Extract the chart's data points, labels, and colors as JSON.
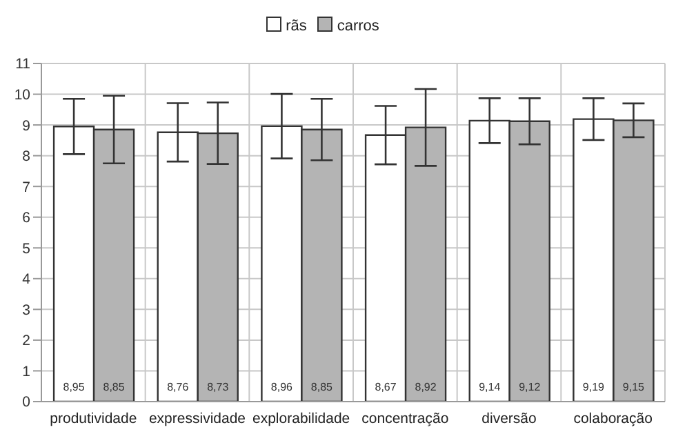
{
  "chart_data": {
    "type": "bar",
    "categories": [
      "produtividade",
      "expressividade",
      "explorabilidade",
      "concentração",
      "diversão",
      "colaboração"
    ],
    "series": [
      {
        "name": "rãs",
        "color": "#ffffff",
        "values": [
          8.95,
          8.76,
          8.96,
          8.67,
          9.14,
          9.19
        ],
        "errors": [
          0.9,
          0.95,
          1.05,
          0.95,
          0.73,
          0.68
        ],
        "value_labels": [
          "8,95",
          "8,76",
          "8,96",
          "8,67",
          "9,14",
          "9,19"
        ]
      },
      {
        "name": "carros",
        "color": "#b4b4b4",
        "values": [
          8.85,
          8.73,
          8.85,
          8.92,
          9.12,
          9.15
        ],
        "errors": [
          1.1,
          1.0,
          1.0,
          1.25,
          0.75,
          0.55
        ],
        "value_labels": [
          "8,85",
          "8,73",
          "8,85",
          "8,92",
          "9,12",
          "9,15"
        ]
      }
    ],
    "ylim": [
      0,
      11
    ],
    "yticks": [
      0,
      1,
      2,
      3,
      4,
      5,
      6,
      7,
      8,
      9,
      10,
      11
    ],
    "grid": true,
    "legend": "top"
  }
}
